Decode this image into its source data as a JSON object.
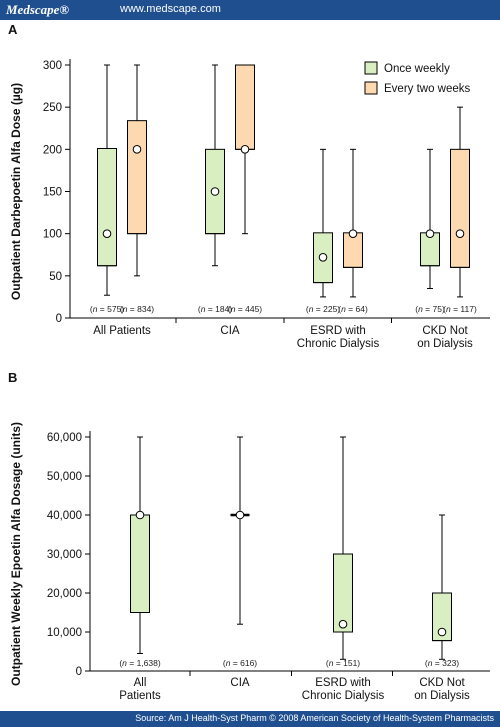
{
  "header": {
    "brand": "Medscape®",
    "site": "www.medscape.com"
  },
  "footer": {
    "source": "Source: Am J Health-Syst Pharm © 2008 American Society of Health-System Pharmacists"
  },
  "colors": {
    "once_weekly": "#d9efc2",
    "every_two_weeks": "#fcd9b1",
    "header": "#1f4f8f"
  },
  "chart_data": [
    {
      "panel": "A",
      "type": "box",
      "ylabel": "Outpatient Darbepoetin Alfa Dose (µg)",
      "ylim": [
        0,
        300
      ],
      "yticks": [
        0,
        50,
        100,
        150,
        200,
        250,
        300
      ],
      "ytick_labels": [
        "0",
        "50",
        "100",
        "150",
        "200",
        "250",
        "300"
      ],
      "legend": {
        "position": "top-right",
        "entries": [
          "Once weekly",
          "Every two weeks"
        ]
      },
      "categories": [
        "All Patients",
        "CIA",
        "ESRD with\nChronic Dialysis",
        "CKD Not\non Dialysis"
      ],
      "series": [
        {
          "name": "Once weekly",
          "boxes": [
            {
              "min": 27,
              "q1": 62,
              "median": 62,
              "q3": 201,
              "max": 300,
              "mean": 100,
              "n": "(n = 575)"
            },
            {
              "min": 62,
              "q1": 100,
              "median": 100,
              "q3": 200,
              "max": 300,
              "mean": 150,
              "n": "(n = 184)"
            },
            {
              "min": 25,
              "q1": 42,
              "median": 42,
              "q3": 101,
              "max": 200,
              "mean": 72,
              "n": "(n = 225)"
            },
            {
              "min": 35,
              "q1": 62,
              "median": 62,
              "q3": 101,
              "max": 200,
              "mean": 100,
              "n": "(n = 75)"
            }
          ]
        },
        {
          "name": "Every two weeks",
          "boxes": [
            {
              "min": 50,
              "q1": 100,
              "median": 100,
              "q3": 234,
              "max": 300,
              "mean": 200,
              "n": "(n = 834)"
            },
            {
              "min": 100,
              "q1": 200,
              "median": 200,
              "q3": 300,
              "max": 300,
              "mean": 200,
              "n": "(n = 445)"
            },
            {
              "min": 25,
              "q1": 60,
              "median": 60,
              "q3": 101,
              "max": 200,
              "mean": 100,
              "n": "(n = 64)"
            },
            {
              "min": 25,
              "q1": 60,
              "median": 60,
              "q3": 200,
              "max": 250,
              "mean": 100,
              "n": "(n = 117)"
            }
          ]
        }
      ]
    },
    {
      "panel": "B",
      "type": "box",
      "ylabel": "Outpatient Weekly Epoetin Alfa Dosage (units)",
      "ylim": [
        0,
        60000
      ],
      "yticks": [
        0,
        10000,
        20000,
        30000,
        40000,
        50000,
        60000
      ],
      "ytick_labels": [
        "0",
        "10,000",
        "20,000",
        "30,000",
        "40,000",
        "50,000",
        "60,000"
      ],
      "categories": [
        "All\nPatients",
        "CIA",
        "ESRD with\nChronic Dialysis",
        "CKD Not\non Dialysis"
      ],
      "series": [
        {
          "name": "",
          "boxes": [
            {
              "min": 4500,
              "q1": 15000,
              "median": 40000,
              "q3": 40000,
              "max": 60000,
              "mean": 40000,
              "n": "(n = 1,638)"
            },
            {
              "min": 12000,
              "q1": 40000,
              "median": 40000,
              "q3": 40000,
              "max": 60000,
              "mean": 40000,
              "n": "(n = 616)"
            },
            {
              "min": 3000,
              "q1": 10000,
              "median": 10000,
              "q3": 30000,
              "max": 60000,
              "mean": 12000,
              "n": "(n = 151)"
            },
            {
              "min": 3000,
              "q1": 7800,
              "median": 7800,
              "q3": 20000,
              "max": 40000,
              "mean": 10000,
              "n": "(n = 323)"
            }
          ]
        }
      ]
    }
  ]
}
